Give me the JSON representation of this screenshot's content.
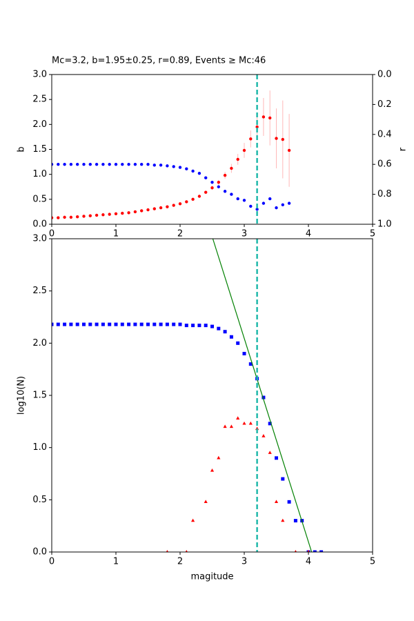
{
  "chart_data": [
    {
      "type": "scatter",
      "title": "Mc=3.2, b=1.95±0.25, r=0.89, Events ≥ Mc:46",
      "ylabel": "b",
      "y2label": "r",
      "xlim": [
        0,
        5
      ],
      "xticks": [
        0,
        1,
        2,
        3,
        4,
        5
      ],
      "ylim": [
        0,
        3
      ],
      "yticks": [
        {
          "value": 0,
          "label": "0.0"
        },
        {
          "value": 0.5,
          "label": "0.5"
        },
        {
          "value": 1,
          "label": "1.0"
        },
        {
          "value": 1.5,
          "label": "1.5"
        },
        {
          "value": 2,
          "label": "2.0"
        },
        {
          "value": 2.5,
          "label": "2.5"
        },
        {
          "value": 3,
          "label": "3.0"
        }
      ],
      "y2lim": [
        0,
        1
      ],
      "y2_inverted": true,
      "y2ticks": [
        {
          "value": 0,
          "label": "0.0"
        },
        {
          "value": 0.2,
          "label": "0.2"
        },
        {
          "value": 0.4,
          "label": "0.4"
        },
        {
          "value": 0.6,
          "label": "0.6"
        },
        {
          "value": 0.8,
          "label": "0.8"
        },
        {
          "value": 1,
          "label": "1.0"
        }
      ],
      "vline": {
        "x": 3.2,
        "color": "#1fb8aa"
      },
      "series": [
        {
          "color": "red",
          "marker": "circle",
          "error_color": "#ffb8b8",
          "x": [
            0,
            0.1,
            0.2,
            0.3,
            0.4,
            0.5,
            0.6,
            0.7,
            0.8,
            0.9,
            1,
            1.1,
            1.2,
            1.3,
            1.4,
            1.5,
            1.6,
            1.7,
            1.8,
            1.9,
            2,
            2.1,
            2.2,
            2.3,
            2.4,
            2.5,
            2.6,
            2.7,
            2.8,
            2.9,
            3,
            3.1,
            3.2,
            3.3,
            3.4,
            3.5,
            3.6,
            3.7
          ],
          "values": [
            0.13,
            0.13,
            0.14,
            0.14,
            0.15,
            0.16,
            0.17,
            0.18,
            0.19,
            0.2,
            0.21,
            0.22,
            0.23,
            0.25,
            0.27,
            0.29,
            0.31,
            0.33,
            0.35,
            0.38,
            0.41,
            0.45,
            0.5,
            0.56,
            0.64,
            0.73,
            0.84,
            0.98,
            1.12,
            1.3,
            1.48,
            1.71,
            1.95,
            2.15,
            2.13,
            1.72,
            1.7,
            1.48
          ],
          "errors": [
            0.01,
            0.01,
            0.01,
            0.01,
            0.01,
            0.01,
            0.01,
            0.01,
            0.01,
            0.01,
            0.01,
            0.01,
            0.01,
            0.01,
            0.01,
            0.01,
            0.01,
            0.01,
            0.01,
            0.01,
            0.02,
            0.02,
            0.02,
            0.02,
            0.03,
            0.04,
            0.05,
            0.07,
            0.09,
            0.11,
            0.15,
            0.17,
            0.25,
            0.38,
            0.55,
            0.6,
            0.78,
            0.73
          ]
        },
        {
          "color": "blue",
          "marker": "circle",
          "axis": "y2",
          "x": [
            0,
            0.1,
            0.2,
            0.3,
            0.4,
            0.5,
            0.6,
            0.7,
            0.8,
            0.9,
            1,
            1.1,
            1.2,
            1.3,
            1.4,
            1.5,
            1.6,
            1.7,
            1.8,
            1.9,
            2,
            2.1,
            2.2,
            2.3,
            2.4,
            2.5,
            2.6,
            2.7,
            2.8,
            2.9,
            3,
            3.1,
            3.2,
            3.3,
            3.4,
            3.5,
            3.6,
            3.7
          ],
          "values": [
            0.6,
            0.6,
            0.6,
            0.6,
            0.6,
            0.6,
            0.6,
            0.6,
            0.6,
            0.6,
            0.6,
            0.6,
            0.6,
            0.6,
            0.6,
            0.6,
            0.605,
            0.605,
            0.61,
            0.615,
            0.62,
            0.63,
            0.645,
            0.66,
            0.69,
            0.72,
            0.75,
            0.78,
            0.8,
            0.83,
            0.84,
            0.88,
            0.9,
            0.86,
            0.83,
            0.89,
            0.87,
            0.86
          ]
        }
      ]
    },
    {
      "type": "scatter",
      "xlabel": "magitude",
      "ylabel": "log10(N)",
      "xlim": [
        0,
        5
      ],
      "xticks": [
        0,
        1,
        2,
        3,
        4,
        5
      ],
      "ylim": [
        0,
        3
      ],
      "yticks": [
        {
          "value": 0,
          "label": "0.0"
        },
        {
          "value": 0.5,
          "label": "0.5"
        },
        {
          "value": 1,
          "label": "1.0"
        },
        {
          "value": 1.5,
          "label": "1.5"
        },
        {
          "value": 2,
          "label": "2.0"
        },
        {
          "value": 2.5,
          "label": "2.5"
        },
        {
          "value": 3,
          "label": "3.0"
        }
      ],
      "vline": {
        "x": 3.2,
        "color": "#1fb8aa"
      },
      "series": [
        {
          "color": "blue",
          "marker": "square",
          "x": [
            0,
            0.1,
            0.2,
            0.3,
            0.4,
            0.5,
            0.6,
            0.7,
            0.8,
            0.9,
            1,
            1.1,
            1.2,
            1.3,
            1.4,
            1.5,
            1.6,
            1.7,
            1.8,
            1.9,
            2,
            2.1,
            2.2,
            2.3,
            2.4,
            2.5,
            2.6,
            2.7,
            2.8,
            2.9,
            3,
            3.1,
            3.2,
            3.3,
            3.4,
            3.5,
            3.6,
            3.7,
            3.8,
            3.9,
            4,
            4.1,
            4.2
          ],
          "values": [
            2.18,
            2.18,
            2.18,
            2.18,
            2.18,
            2.18,
            2.18,
            2.18,
            2.18,
            2.18,
            2.18,
            2.18,
            2.18,
            2.18,
            2.18,
            2.18,
            2.18,
            2.18,
            2.18,
            2.18,
            2.18,
            2.17,
            2.17,
            2.17,
            2.17,
            2.16,
            2.14,
            2.11,
            2.06,
            2.0,
            1.9,
            1.8,
            1.66,
            1.48,
            1.23,
            0.9,
            0.7,
            0.48,
            0.3,
            0.3,
            0,
            0,
            0
          ]
        },
        {
          "color": "red",
          "marker": "triangle",
          "x": [
            1.8,
            2.1,
            2.2,
            2.4,
            2.5,
            2.6,
            2.7,
            2.8,
            2.9,
            3,
            3.1,
            3.2,
            3.3,
            3.4,
            3.5,
            3.6,
            3.8,
            4
          ],
          "values": [
            0,
            0,
            0.3,
            0.48,
            0.78,
            0.9,
            1.2,
            1.2,
            1.28,
            1.23,
            1.23,
            1.18,
            1.11,
            0.95,
            0.48,
            0.3,
            0,
            0
          ]
        },
        {
          "color": "green",
          "marker": "line",
          "x": [
            2.51,
            4.05
          ],
          "values": [
            3,
            0
          ]
        }
      ]
    }
  ]
}
